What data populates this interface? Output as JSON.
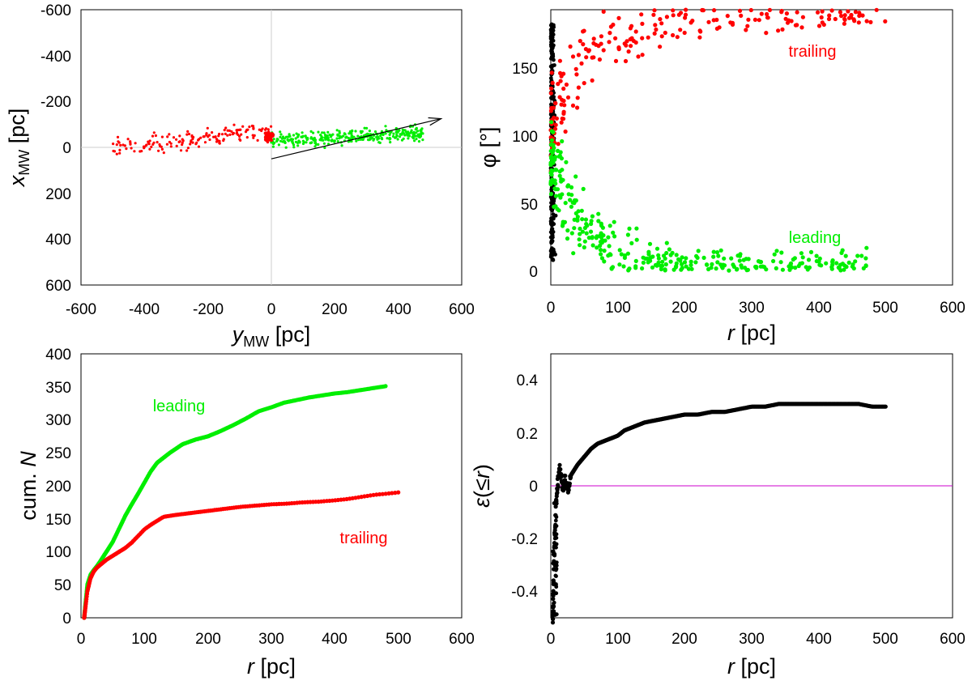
{
  "chart_data": [
    {
      "id": "tl",
      "type": "scatter",
      "xlabel": "y_MW [pc]",
      "ylabel": "x_MW [pc]",
      "xlim": [
        -600,
        600
      ],
      "ylim": [
        600,
        -600
      ],
      "y_inverted": true,
      "xticks": [
        "-600",
        "-400",
        "-200",
        "0",
        "200",
        "400",
        "600"
      ],
      "yticks": [
        "-600",
        "-400",
        "-200",
        "0",
        "200",
        "400",
        "600"
      ],
      "grid": "zero lines only",
      "arrow": {
        "from": [
          0,
          50
        ],
        "to": [
          535,
          -125
        ],
        "color": "#000000"
      },
      "series": [
        {
          "key": "trailing",
          "color": "#ff0000",
          "n": 160,
          "x_range": [
            -500,
            0
          ],
          "y_center_at_min": 0,
          "y_center_at_max": -70,
          "spread": 20,
          "dot_r": 1.6
        },
        {
          "key": "leading",
          "color": "#00ee00",
          "n": 320,
          "x_range": [
            0,
            480
          ],
          "y_center_at_min": -30,
          "y_center_at_max": -60,
          "spread": 16,
          "dot_r": 1.6
        }
      ]
    },
    {
      "id": "tr",
      "type": "scatter",
      "xlabel": "r [pc]",
      "ylabel": "φ [°]",
      "xlim": [
        0,
        600
      ],
      "ylim": [
        -10,
        180
      ],
      "xticks": [
        "0",
        "100",
        "200",
        "300",
        "400",
        "500",
        "600"
      ],
      "yticks": [
        "0",
        "50",
        "100",
        "150"
      ],
      "annotations": [
        {
          "text": "trailing",
          "x": 445,
          "y": 158,
          "color": "#ff0000"
        },
        {
          "text": "leading",
          "x": 435,
          "y": 25,
          "color": "#00ee00"
        }
      ],
      "series": [
        {
          "key": "black",
          "color": "#000000",
          "description": "dense column at r≈0–5 pc spanning φ 5–170"
        },
        {
          "key": "trailing",
          "color": "#ff0000",
          "description": "r 0–500 pc, φ≈100–180, rising with r"
        },
        {
          "key": "leading",
          "color": "#00ee00",
          "description": "r 0–485 pc, φ decaying from ~90 to ~5"
        }
      ]
    },
    {
      "id": "bl",
      "type": "line",
      "xlabel": "r [pc]",
      "ylabel": "cum. N",
      "xlim": [
        0,
        600
      ],
      "ylim": [
        0,
        400
      ],
      "xticks": [
        "0",
        "100",
        "200",
        "300",
        "400",
        "500",
        "600"
      ],
      "yticks": [
        "0",
        "50",
        "100",
        "150",
        "200",
        "250",
        "300",
        "350",
        "400"
      ],
      "annotations": [
        {
          "text": "leading",
          "x": 140,
          "y": 312,
          "color": "#00ee00"
        },
        {
          "text": "trailing",
          "x": 395,
          "y": 115,
          "color": "#ff0000"
        }
      ],
      "series": [
        {
          "key": "leading",
          "color": "#00ee00",
          "x": [
            5,
            10,
            15,
            20,
            25,
            30,
            40,
            50,
            60,
            70,
            80,
            90,
            100,
            110,
            120,
            140,
            160,
            180,
            200,
            220,
            240,
            260,
            280,
            300,
            320,
            340,
            360,
            380,
            400,
            420,
            440,
            460,
            480
          ],
          "y": [
            0,
            50,
            65,
            72,
            78,
            85,
            100,
            115,
            135,
            155,
            172,
            188,
            205,
            222,
            235,
            250,
            263,
            270,
            275,
            283,
            292,
            302,
            313,
            319,
            326,
            330,
            334,
            337,
            340,
            342,
            345,
            348,
            351
          ]
        },
        {
          "key": "trailing",
          "color": "#ff0000",
          "x": [
            5,
            10,
            15,
            20,
            25,
            30,
            40,
            50,
            60,
            70,
            80,
            90,
            100,
            110,
            120,
            130,
            150,
            175,
            200,
            225,
            250,
            275,
            300,
            325,
            350,
            375,
            400,
            420,
            440,
            460,
            480,
            500
          ],
          "y": [
            0,
            40,
            60,
            70,
            76,
            80,
            88,
            94,
            100,
            106,
            114,
            124,
            134,
            141,
            147,
            153,
            156,
            159,
            162,
            165,
            168,
            170,
            172,
            173,
            175,
            176,
            178,
            180,
            183,
            186,
            188,
            190
          ]
        }
      ]
    },
    {
      "id": "br",
      "type": "line",
      "xlabel": "r [pc]",
      "ylabel": "ε(≤r)",
      "xlim": [
        0,
        600
      ],
      "ylim": [
        -0.5,
        0.5
      ],
      "xticks": [
        "0",
        "100",
        "200",
        "300",
        "400",
        "500",
        "600"
      ],
      "yticks": [
        "0.4",
        "0.2",
        "0",
        "-0.2",
        "-0.4"
      ],
      "zero_line_color": "#cc00cc",
      "series": [
        {
          "key": "epsilon",
          "color": "#000000",
          "x": [
            3,
            5,
            7,
            9,
            11,
            13,
            15,
            17,
            19,
            21,
            23,
            25,
            28,
            30,
            35,
            40,
            50,
            60,
            70,
            80,
            90,
            100,
            110,
            120,
            140,
            160,
            180,
            200,
            220,
            240,
            260,
            280,
            300,
            320,
            340,
            360,
            380,
            400,
            420,
            440,
            460,
            480,
            500
          ],
          "y": [
            -0.5,
            -0.25,
            -0.1,
            -0.02,
            0.03,
            0.06,
            0.05,
            0.01,
            0.0,
            0.02,
            0.0,
            -0.02,
            0.02,
            0.04,
            0.06,
            0.08,
            0.11,
            0.14,
            0.16,
            0.17,
            0.18,
            0.19,
            0.21,
            0.22,
            0.24,
            0.25,
            0.26,
            0.27,
            0.27,
            0.28,
            0.28,
            0.29,
            0.3,
            0.3,
            0.31,
            0.31,
            0.31,
            0.31,
            0.31,
            0.31,
            0.31,
            0.3,
            0.3
          ]
        }
      ]
    }
  ]
}
